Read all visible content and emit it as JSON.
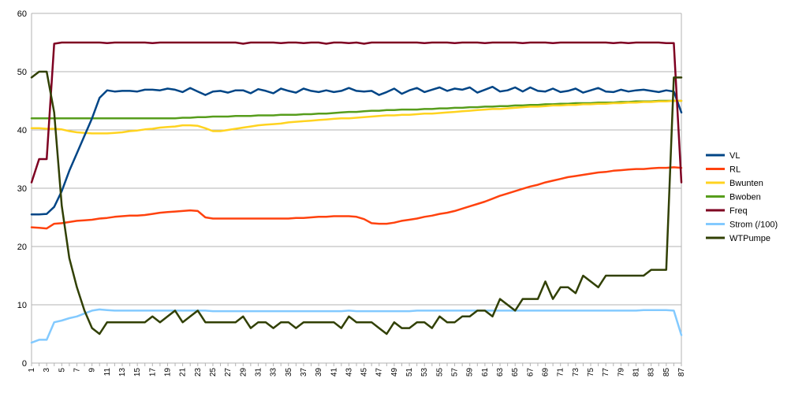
{
  "chart_data": {
    "type": "line",
    "title": "",
    "xlabel": "",
    "ylabel": "",
    "ylim": [
      0,
      60
    ],
    "yticks": [
      0,
      10,
      20,
      30,
      40,
      50,
      60
    ],
    "x": [
      1,
      2,
      3,
      4,
      5,
      6,
      7,
      8,
      9,
      10,
      11,
      12,
      13,
      14,
      15,
      16,
      17,
      18,
      19,
      20,
      21,
      22,
      23,
      24,
      25,
      26,
      27,
      28,
      29,
      30,
      31,
      32,
      33,
      34,
      35,
      36,
      37,
      38,
      39,
      40,
      41,
      42,
      43,
      44,
      45,
      46,
      47,
      48,
      49,
      50,
      51,
      52,
      53,
      54,
      55,
      56,
      57,
      58,
      59,
      60,
      61,
      62,
      63,
      64,
      65,
      66,
      67,
      68,
      69,
      70,
      71,
      72,
      73,
      74,
      75,
      76,
      77,
      78,
      79,
      80,
      81,
      82,
      83,
      84,
      85,
      86,
      87
    ],
    "grid": "horizontal",
    "legend_position": "right",
    "series": [
      {
        "name": "VL",
        "color": "#004586",
        "values": [
          25.5,
          25.5,
          25.6,
          26.8,
          29.5,
          33,
          36,
          39,
          42,
          45.5,
          46.8,
          46.6,
          46.7,
          46.7,
          46.6,
          46.9,
          46.9,
          46.8,
          47.1,
          46.9,
          46.5,
          47.2,
          46.6,
          46,
          46.6,
          46.7,
          46.4,
          46.8,
          46.8,
          46.3,
          47,
          46.7,
          46.3,
          47.1,
          46.7,
          46.4,
          47.1,
          46.7,
          46.5,
          46.8,
          46.5,
          46.7,
          47.2,
          46.7,
          46.6,
          46.7,
          46,
          46.5,
          47.1,
          46.2,
          46.8,
          47.2,
          46.5,
          46.9,
          47.3,
          46.7,
          47.1,
          46.9,
          47.3,
          46.4,
          46.9,
          47.4,
          46.6,
          46.8,
          47.3,
          46.6,
          47.3,
          46.7,
          46.6,
          47.1,
          46.5,
          46.7,
          47.1,
          46.4,
          46.8,
          47.2,
          46.6,
          46.5,
          46.9,
          46.6,
          46.8,
          46.9,
          46.7,
          46.5,
          46.8,
          46.6,
          43
        ]
      },
      {
        "name": "RL",
        "color": "#ff420e",
        "values": [
          23.3,
          23.2,
          23.1,
          23.9,
          24,
          24.2,
          24.4,
          24.5,
          24.6,
          24.8,
          24.9,
          25.1,
          25.2,
          25.3,
          25.3,
          25.4,
          25.6,
          25.8,
          25.9,
          26,
          26.1,
          26.2,
          26.1,
          25,
          24.8,
          24.8,
          24.8,
          24.8,
          24.8,
          24.8,
          24.8,
          24.8,
          24.8,
          24.8,
          24.8,
          24.9,
          24.9,
          25,
          25.1,
          25.1,
          25.2,
          25.2,
          25.2,
          25.1,
          24.7,
          24,
          23.9,
          23.9,
          24.1,
          24.4,
          24.6,
          24.8,
          25.1,
          25.3,
          25.6,
          25.8,
          26.1,
          26.5,
          26.9,
          27.3,
          27.7,
          28.2,
          28.7,
          29.1,
          29.5,
          29.9,
          30.3,
          30.6,
          31,
          31.3,
          31.6,
          31.9,
          32.1,
          32.3,
          32.5,
          32.7,
          32.8,
          33,
          33.1,
          33.2,
          33.3,
          33.3,
          33.4,
          33.5,
          33.5,
          33.6,
          33.5
        ]
      },
      {
        "name": "Bwunten",
        "color": "#ffd320",
        "values": [
          40.3,
          40.3,
          40.2,
          40.2,
          40.1,
          39.8,
          39.6,
          39.5,
          39.4,
          39.4,
          39.4,
          39.5,
          39.6,
          39.8,
          39.9,
          40.1,
          40.2,
          40.4,
          40.5,
          40.6,
          40.8,
          40.8,
          40.7,
          40.3,
          39.8,
          39.8,
          40,
          40.2,
          40.4,
          40.6,
          40.8,
          40.9,
          41,
          41.1,
          41.3,
          41.4,
          41.5,
          41.6,
          41.7,
          41.8,
          41.9,
          42,
          42,
          42.1,
          42.2,
          42.3,
          42.4,
          42.5,
          42.5,
          42.6,
          42.6,
          42.7,
          42.8,
          42.8,
          42.9,
          43,
          43.1,
          43.2,
          43.3,
          43.4,
          43.5,
          43.6,
          43.6,
          43.7,
          43.8,
          43.9,
          44,
          44,
          44.1,
          44.2,
          44.2,
          44.3,
          44.3,
          44.4,
          44.4,
          44.5,
          44.5,
          44.6,
          44.6,
          44.7,
          44.7,
          44.8,
          44.8,
          44.9,
          44.9,
          45,
          45
        ]
      },
      {
        "name": "Bwoben",
        "color": "#579d1c",
        "values": [
          42,
          42,
          42,
          42,
          42,
          42,
          42,
          42,
          42,
          42,
          42,
          42,
          42,
          42,
          42,
          42,
          42,
          42,
          42,
          42,
          42.1,
          42.1,
          42.2,
          42.2,
          42.3,
          42.3,
          42.3,
          42.4,
          42.4,
          42.4,
          42.5,
          42.5,
          42.5,
          42.6,
          42.6,
          42.6,
          42.7,
          42.7,
          42.8,
          42.8,
          42.9,
          43,
          43.1,
          43.1,
          43.2,
          43.3,
          43.3,
          43.4,
          43.4,
          43.5,
          43.5,
          43.5,
          43.6,
          43.6,
          43.7,
          43.7,
          43.8,
          43.8,
          43.9,
          43.9,
          44,
          44,
          44.1,
          44.1,
          44.2,
          44.2,
          44.3,
          44.3,
          44.4,
          44.4,
          44.5,
          44.5,
          44.6,
          44.6,
          44.6,
          44.7,
          44.7,
          44.7,
          44.8,
          44.8,
          44.9,
          44.9,
          44.9,
          45,
          45,
          45,
          45
        ]
      },
      {
        "name": "Freq",
        "color": "#7e0021",
        "values": [
          31,
          35,
          35,
          54.8,
          55,
          55,
          55,
          55,
          55,
          55,
          54.9,
          55,
          55,
          55,
          55,
          55,
          54.9,
          55,
          55,
          55,
          55,
          55,
          55,
          55,
          55,
          55,
          55,
          55,
          54.8,
          55,
          55,
          55,
          55,
          54.9,
          55,
          55,
          54.9,
          55,
          55,
          54.8,
          55,
          55,
          54.9,
          55,
          54.8,
          55,
          55,
          55,
          55,
          55,
          55,
          55,
          54.9,
          55,
          55,
          55,
          54.9,
          55,
          55,
          55,
          54.9,
          55,
          55,
          55,
          55,
          54.9,
          55,
          55,
          55,
          54.9,
          55,
          55,
          55,
          55,
          55,
          55,
          55,
          54.9,
          55,
          54.9,
          55,
          55,
          55,
          55,
          54.9,
          54.9,
          31
        ]
      },
      {
        "name": "Strom (/100)",
        "color": "#83caff",
        "values": [
          3.5,
          4,
          4,
          7,
          7.3,
          7.7,
          8,
          8.5,
          9,
          9.2,
          9.1,
          9,
          9,
          9,
          9,
          9,
          9,
          9,
          9,
          9,
          9,
          9,
          9,
          9,
          8.9,
          8.9,
          8.9,
          8.9,
          8.9,
          8.9,
          8.9,
          8.9,
          8.9,
          8.9,
          8.9,
          8.9,
          8.9,
          8.9,
          8.9,
          8.9,
          8.9,
          8.9,
          9,
          8.9,
          8.9,
          8.9,
          8.9,
          8.9,
          8.9,
          8.9,
          8.9,
          9,
          9,
          9,
          9,
          9,
          9,
          9,
          9,
          9,
          9,
          9,
          9,
          9,
          9,
          9,
          9,
          9,
          9,
          9,
          9,
          9,
          9,
          9,
          9,
          9,
          9,
          9,
          9,
          9,
          9,
          9.1,
          9.1,
          9.1,
          9.1,
          9,
          4.8
        ]
      },
      {
        "name": "WTPumpe",
        "color": "#314004",
        "values": [
          49,
          50,
          50,
          43,
          27,
          18,
          13,
          9,
          6,
          5,
          7,
          7,
          7,
          7,
          7,
          7,
          8,
          7,
          8,
          9,
          7,
          8,
          9,
          7,
          7,
          7,
          7,
          7,
          8,
          6,
          7,
          7,
          6,
          7,
          7,
          6,
          7,
          7,
          7,
          7,
          7,
          6,
          8,
          7,
          7,
          7,
          6,
          5,
          7,
          6,
          6,
          7,
          7,
          6,
          8,
          7,
          7,
          8,
          8,
          9,
          9,
          8,
          11,
          10,
          9,
          11,
          11,
          11,
          14,
          11,
          13,
          13,
          12,
          15,
          14,
          13,
          15,
          15,
          15,
          15,
          15,
          15,
          16,
          16,
          16,
          49,
          49
        ]
      }
    ]
  }
}
